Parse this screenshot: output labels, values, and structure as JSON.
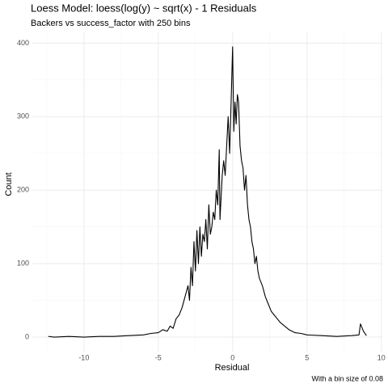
{
  "chart_data": {
    "type": "line",
    "title": "Loess Model: loess(log(y) ~ sqrt(x) - 1 Residuals",
    "subtitle": "Backers vs success_factor with 250 bins",
    "x_label": "Residual",
    "y_label": "Count",
    "annotation": "With a bin size of 0.08",
    "color": "#000000",
    "grid": true,
    "xlim": [
      -13.47,
      10.07
    ],
    "ylim": [
      -19.75,
      414.75
    ],
    "xticks": [
      -10,
      -5,
      0,
      5,
      10
    ],
    "yticks": [
      0,
      100,
      200,
      300,
      400
    ],
    "xminor": [
      -12.5,
      -7.5,
      -2.5,
      2.5,
      7.5
    ],
    "yminor": [
      50,
      150,
      250,
      350
    ],
    "x": [
      -12.4,
      -12,
      -11,
      -10,
      -9,
      -8,
      -7,
      -6,
      -5.5,
      -5,
      -4.7,
      -4.4,
      -4.2,
      -4,
      -3.8,
      -3.6,
      -3.4,
      -3.2,
      -3.0,
      -2.9,
      -2.8,
      -2.7,
      -2.6,
      -2.5,
      -2.4,
      -2.3,
      -2.2,
      -2.1,
      -2.0,
      -1.9,
      -1.8,
      -1.7,
      -1.6,
      -1.5,
      -1.4,
      -1.3,
      -1.2,
      -1.1,
      -1.0,
      -0.9,
      -0.85,
      -0.7,
      -0.6,
      -0.5,
      -0.4,
      -0.3,
      -0.2,
      -0.1,
      0,
      0.08,
      0.16,
      0.24,
      0.32,
      0.4,
      0.5,
      0.6,
      0.7,
      0.8,
      0.9,
      1.0,
      1.1,
      1.2,
      1.3,
      1.4,
      1.5,
      1.6,
      1.7,
      1.8,
      2.0,
      2.2,
      2.4,
      2.6,
      2.8,
      3.0,
      3.2,
      3.5,
      3.8,
      4.2,
      4.6,
      5,
      6,
      7,
      8,
      8.5,
      8.6,
      8.8,
      9.0
    ],
    "values": [
      1,
      0,
      1,
      0,
      1,
      1,
      2,
      3,
      5,
      6,
      10,
      8,
      15,
      12,
      25,
      30,
      40,
      55,
      70,
      50,
      95,
      70,
      130,
      90,
      145,
      100,
      150,
      110,
      140,
      130,
      160,
      120,
      180,
      140,
      150,
      170,
      160,
      200,
      180,
      255,
      160,
      220,
      240,
      220,
      260,
      300,
      250,
      320,
      395,
      280,
      320,
      290,
      330,
      320,
      260,
      240,
      230,
      200,
      220,
      180,
      160,
      150,
      130,
      120,
      100,
      110,
      90,
      80,
      70,
      55,
      45,
      35,
      30,
      25,
      20,
      15,
      10,
      6,
      5,
      3,
      2,
      1,
      2,
      3,
      18,
      8,
      2
    ]
  }
}
